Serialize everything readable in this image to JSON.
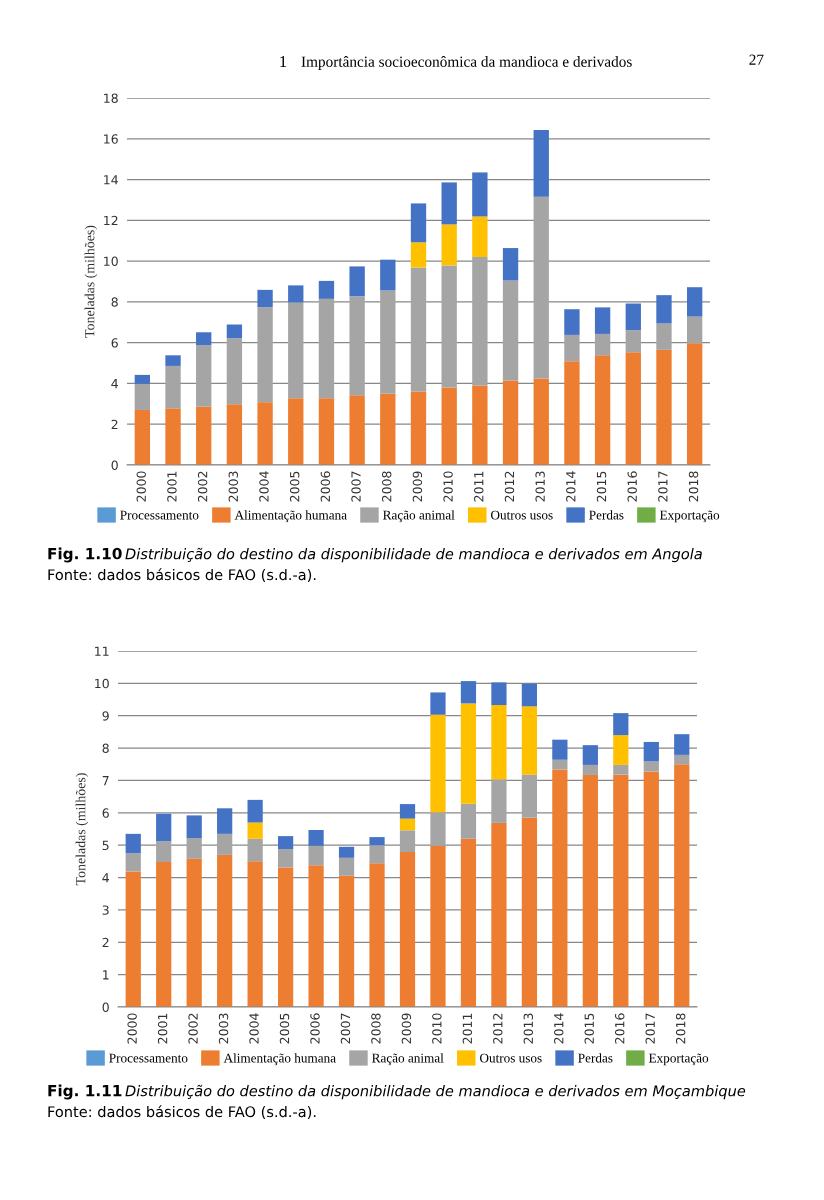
{
  "chart_data": [
    {
      "type": "bar",
      "stacked": true,
      "ylabel": "Toneladas (milhões)",
      "categories": [
        "2000",
        "2001",
        "2002",
        "2003",
        "2004",
        "2005",
        "2006",
        "2007",
        "2008",
        "2009",
        "2010",
        "2011",
        "2012",
        "2013",
        "2014",
        "2015",
        "2016",
        "2017",
        "2018"
      ],
      "series": [
        {
          "name": "Processamento",
          "color": "#5b9bd5",
          "values": [
            0,
            0,
            0,
            0,
            0,
            0,
            0,
            0,
            0,
            0,
            0,
            0,
            0,
            0,
            0,
            0,
            0,
            0,
            0
          ]
        },
        {
          "name": "Alimentação humana",
          "color": "#ed7d31",
          "values": [
            2.7,
            2.78,
            2.86,
            2.98,
            3.08,
            3.27,
            3.27,
            3.42,
            3.5,
            3.6,
            3.8,
            3.9,
            4.14,
            4.24,
            5.09,
            5.38,
            5.53,
            5.65,
            5.97
          ]
        },
        {
          "name": "Ração animal",
          "color": "#a5a5a5",
          "values": [
            1.28,
            2.08,
            3.02,
            3.24,
            4.66,
            4.7,
            4.88,
            4.85,
            5.06,
            6.09,
            5.99,
            6.3,
            4.91,
            8.92,
            1.29,
            1.05,
            1.08,
            1.29,
            1.31
          ]
        },
        {
          "name": "Outros usos",
          "color": "#ffc000",
          "values": [
            0,
            0,
            0,
            0,
            0,
            0,
            0,
            0,
            0,
            1.23,
            2.01,
            1.99,
            0,
            0,
            0,
            0,
            0,
            0,
            0
          ]
        },
        {
          "name": "Perdas",
          "color": "#4472c4",
          "values": [
            0.44,
            0.52,
            0.63,
            0.67,
            0.85,
            0.84,
            0.88,
            1.47,
            1.51,
            1.91,
            2.06,
            2.16,
            1.59,
            3.27,
            1.26,
            1.3,
            1.31,
            1.39,
            1.44
          ]
        },
        {
          "name": "Exportação",
          "color": "#70ad47",
          "values": [
            0,
            0,
            0,
            0,
            0,
            0,
            0,
            0,
            0,
            0,
            0,
            0,
            0,
            0,
            0,
            0,
            0,
            0,
            0
          ]
        }
      ],
      "ylim": [
        0,
        18
      ],
      "yticks": [
        0,
        2,
        4,
        6,
        8,
        10,
        12,
        14,
        16,
        18
      ],
      "grid": "y",
      "legend": "bottom",
      "annotations": [
        "Fig. 1.10",
        "Distribuição do destino da disponibilidade de mandioca e derivados em Angola",
        "Fonte: dados básicos de FAO (s.d.-a).",
        "1",
        "Importância socioeconômica da mandioca e derivados",
        "27"
      ]
    },
    {
      "type": "bar",
      "stacked": true,
      "ylabel": "Toneladas (milhões)",
      "categories": [
        "2000",
        "2001",
        "2002",
        "2003",
        "2004",
        "2005",
        "2006",
        "2007",
        "2008",
        "2009",
        "2010",
        "2011",
        "2012",
        "2013",
        "2014",
        "2015",
        "2016",
        "2017",
        "2018"
      ],
      "series": [
        {
          "name": "Processamento",
          "color": "#5b9bd5",
          "values": [
            0,
            0,
            0,
            0,
            0,
            0,
            0,
            0,
            0,
            0,
            0,
            0,
            0,
            0,
            0,
            0,
            0,
            0,
            0
          ]
        },
        {
          "name": "Alimentação humana",
          "color": "#ed7d31",
          "values": [
            4.19,
            4.48,
            4.58,
            4.7,
            4.5,
            4.31,
            4.38,
            4.06,
            4.44,
            4.79,
            4.98,
            5.2,
            5.69,
            5.85,
            7.34,
            7.17,
            7.18,
            7.28,
            7.5
          ]
        },
        {
          "name": "Ração animal",
          "color": "#a5a5a5",
          "values": [
            0.56,
            0.64,
            0.64,
            0.65,
            0.7,
            0.57,
            0.6,
            0.55,
            0.56,
            0.67,
            1.04,
            1.08,
            1.35,
            1.33,
            0.3,
            0.31,
            0.3,
            0.31,
            0.29
          ]
        },
        {
          "name": "Outros usos",
          "color": "#ffc000",
          "values": [
            0,
            0,
            0,
            0,
            0.5,
            0,
            0,
            0,
            0,
            0.36,
            3.01,
            3.1,
            2.29,
            2.11,
            0,
            0,
            0.92,
            0,
            0
          ]
        },
        {
          "name": "Perdas",
          "color": "#4472c4",
          "values": [
            0.6,
            0.85,
            0.7,
            0.79,
            0.7,
            0.4,
            0.49,
            0.34,
            0.25,
            0.45,
            0.69,
            0.69,
            0.7,
            0.7,
            0.62,
            0.61,
            0.68,
            0.6,
            0.64
          ]
        },
        {
          "name": "Exportação",
          "color": "#70ad47",
          "values": [
            0,
            0,
            0,
            0,
            0,
            0,
            0,
            0,
            0,
            0,
            0,
            0,
            0,
            0,
            0,
            0,
            0,
            0,
            0
          ]
        }
      ],
      "ylim": [
        0,
        11
      ],
      "yticks": [
        0,
        1,
        2,
        3,
        4,
        5,
        6,
        7,
        8,
        9,
        10,
        11
      ],
      "grid": "y",
      "legend": "bottom",
      "annotations": [
        "Fig. 1.11",
        "Distribuição do destino da disponibilidade de mandioca e derivados em Moçambique",
        "Fonte: dados básicos de FAO (s.d.-a)."
      ]
    }
  ]
}
